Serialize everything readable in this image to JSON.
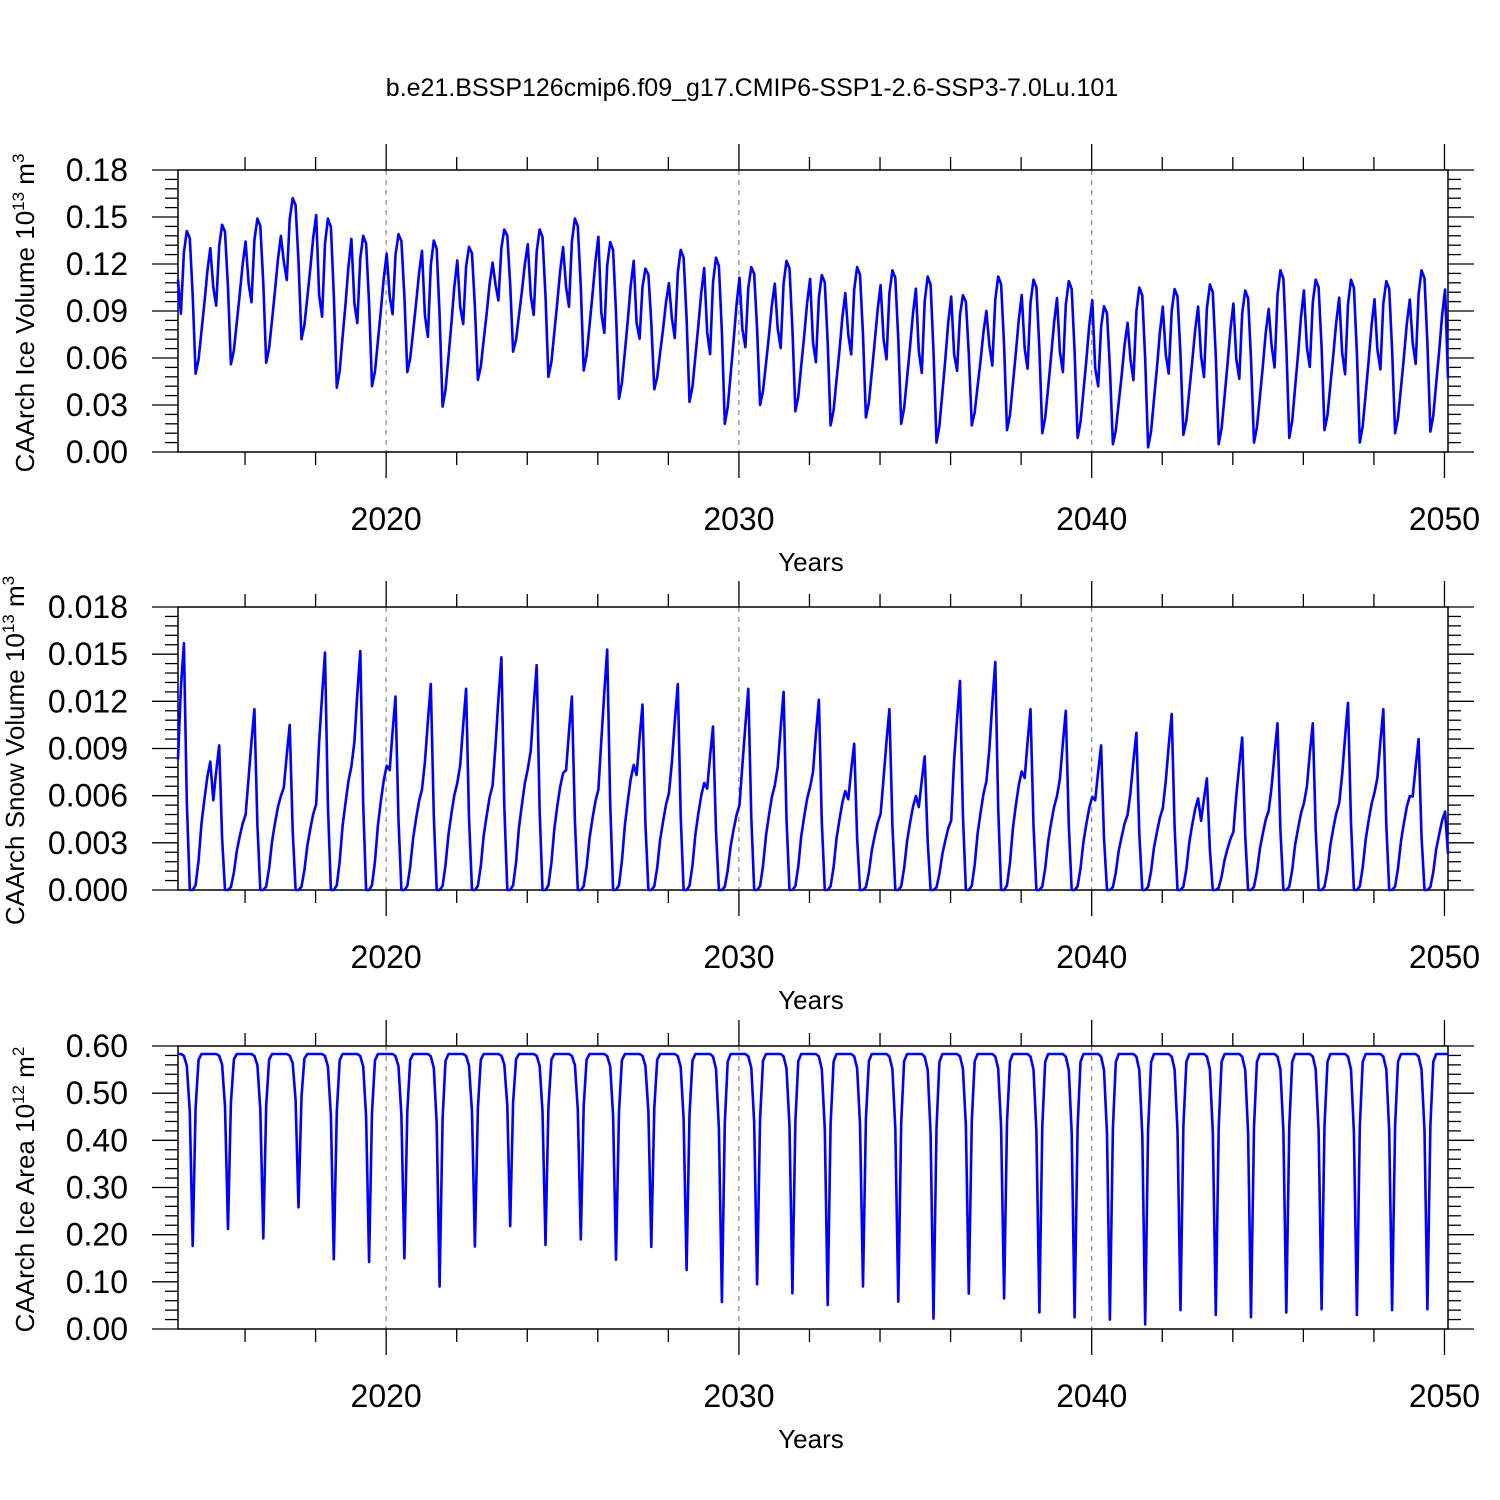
{
  "title": "b.e21.BSSP126cmip6.f09_g17.CMIP6-SSP1-2.6-SSP3-7.0Lu.101",
  "chart_data": [
    {
      "type": "line",
      "id": "ice-volume",
      "ylabel_text": "CAArch Ice Volume 10",
      "ylabel_exp": "13",
      "ylabel_unit": "m",
      "ylabel_unit_exp": "3",
      "xlabel": "Years",
      "xlim": [
        2014.1,
        2050.1
      ],
      "ylim": [
        0,
        0.18
      ],
      "yticks": [
        "0.00",
        "0.03",
        "0.06",
        "0.09",
        "0.12",
        "0.15",
        "0.18"
      ],
      "xticks": [
        "2020",
        "2030",
        "2040",
        "2050"
      ],
      "start_year": 2014.1,
      "annual_max": [
        0.141,
        0.145,
        0.149,
        0.162,
        0.149,
        0.138,
        0.139,
        0.135,
        0.131,
        0.142,
        0.142,
        0.149,
        0.134,
        0.117,
        0.129,
        0.124,
        0.118,
        0.122,
        0.113,
        0.118,
        0.116,
        0.112,
        0.1,
        0.112,
        0.11,
        0.109,
        0.093,
        0.105,
        0.104,
        0.107,
        0.103,
        0.116,
        0.11,
        0.11,
        0.109,
        0.116
      ],
      "annual_min": [
        0.05,
        0.056,
        0.057,
        0.072,
        0.041,
        0.042,
        0.051,
        0.029,
        0.046,
        0.064,
        0.048,
        0.052,
        0.034,
        0.04,
        0.032,
        0.018,
        0.03,
        0.026,
        0.017,
        0.022,
        0.018,
        0.006,
        0.017,
        0.014,
        0.012,
        0.009,
        0.005,
        0.003,
        0.011,
        0.005,
        0.006,
        0.009,
        0.014,
        0.006,
        0.012,
        0.013
      ],
      "initial_value": 0.11,
      "final_value": 0.047
    },
    {
      "type": "line",
      "id": "snow-volume",
      "ylabel_text": "CAArch Snow Volume 10",
      "ylabel_exp": "13",
      "ylabel_unit": "m",
      "ylabel_unit_exp": "3",
      "xlabel": "Years",
      "xlim": [
        2014.1,
        2050.1
      ],
      "ylim": [
        0,
        0.018
      ],
      "yticks": [
        "0.000",
        "0.003",
        "0.006",
        "0.009",
        "0.012",
        "0.015",
        "0.018"
      ],
      "xticks": [
        "2020",
        "2030",
        "2040",
        "2050"
      ],
      "start_year": 2014.1,
      "annual_max": [
        0.0157,
        0.0092,
        0.0115,
        0.0105,
        0.0151,
        0.0152,
        0.0123,
        0.0131,
        0.0128,
        0.0148,
        0.0143,
        0.0123,
        0.0153,
        0.0118,
        0.0131,
        0.0104,
        0.0128,
        0.0126,
        0.0121,
        0.0093,
        0.0115,
        0.0085,
        0.0133,
        0.0145,
        0.0115,
        0.0114,
        0.0092,
        0.01,
        0.0112,
        0.0071,
        0.0097,
        0.0106,
        0.0106,
        0.0119,
        0.0115,
        0.0096
      ],
      "initial_value": 0.0083,
      "final_value": 0.0023
    },
    {
      "type": "line",
      "id": "ice-area",
      "ylabel_text": "CAArch Ice Area 10",
      "ylabel_exp": "12",
      "ylabel_unit": "m",
      "ylabel_unit_exp": "2",
      "xlabel": "Years",
      "xlim": [
        2014.1,
        2050.1
      ],
      "ylim": [
        0,
        0.6
      ],
      "yticks": [
        "0.00",
        "0.10",
        "0.20",
        "0.30",
        "0.40",
        "0.50",
        "0.60"
      ],
      "xticks": [
        "2020",
        "2030",
        "2040",
        "2050"
      ],
      "start_year": 2014.1,
      "annual_max": [
        0.583,
        0.583,
        0.583,
        0.583,
        0.583,
        0.583,
        0.583,
        0.583,
        0.583,
        0.583,
        0.583,
        0.583,
        0.583,
        0.583,
        0.583,
        0.583,
        0.583,
        0.583,
        0.583,
        0.583,
        0.583,
        0.583,
        0.583,
        0.583,
        0.583,
        0.583,
        0.583,
        0.583,
        0.583,
        0.583,
        0.583,
        0.583,
        0.583,
        0.583,
        0.583,
        0.583
      ],
      "annual_min": [
        0.176,
        0.212,
        0.192,
        0.258,
        0.148,
        0.142,
        0.15,
        0.09,
        0.175,
        0.218,
        0.178,
        0.19,
        0.147,
        0.174,
        0.125,
        0.057,
        0.095,
        0.076,
        0.051,
        0.09,
        0.058,
        0.022,
        0.075,
        0.065,
        0.035,
        0.025,
        0.02,
        0.01,
        0.04,
        0.03,
        0.025,
        0.035,
        0.042,
        0.03,
        0.04,
        0.042
      ],
      "initial_value": 0.583,
      "final_value": 0.583
    }
  ]
}
